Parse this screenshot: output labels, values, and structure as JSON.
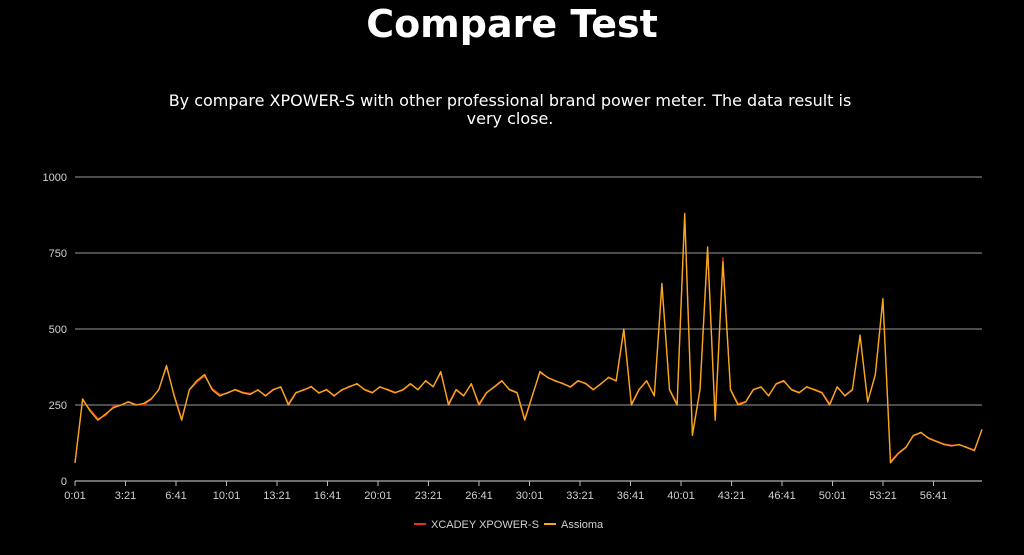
{
  "page": {
    "title": "Compare Test",
    "subtitle": "By compare XPOWER-S with other professional brand power meter. The data result is very close."
  },
  "colors": {
    "background": "#000000",
    "grid": "#9a9a9a",
    "text": "#d0d0d0",
    "series_xpower": "#e8321e",
    "series_assioma": "#f5a81c"
  },
  "chart_data": {
    "type": "line",
    "title": "",
    "xlabel": "",
    "ylabel": "",
    "ylim": [
      0,
      1000
    ],
    "y_ticks": [
      0,
      250,
      500,
      750,
      1000
    ],
    "x_ticks": [
      "0:01",
      "3:21",
      "6:41",
      "10:01",
      "13:21",
      "16:41",
      "20:01",
      "23:21",
      "26:41",
      "30:01",
      "33:21",
      "36:41",
      "40:01",
      "43:21",
      "46:41",
      "50:01",
      "53:21",
      "56:41"
    ],
    "x_range_minutes": [
      0,
      59.5
    ],
    "grid": "horizontal",
    "legend_position": "bottom",
    "series": [
      {
        "name": "XCADEY XPOWER-S",
        "color": "#e8321e"
      },
      {
        "name": "Assioma",
        "color": "#f5a81c"
      }
    ],
    "x": [
      0,
      0.5,
      1,
      1.5,
      2,
      2.5,
      3,
      3.5,
      4,
      4.5,
      5,
      5.5,
      6,
      6.5,
      7,
      7.5,
      8,
      8.5,
      9,
      9.5,
      10,
      10.5,
      11,
      11.5,
      12,
      12.5,
      13,
      13.5,
      14,
      14.5,
      15,
      15.5,
      16,
      16.5,
      17,
      17.5,
      18,
      18.5,
      19,
      19.5,
      20,
      20.5,
      21,
      21.5,
      22,
      22.5,
      23,
      23.5,
      24,
      24.5,
      25,
      25.5,
      26,
      26.5,
      27,
      27.5,
      28,
      28.5,
      29,
      29.5,
      30,
      30.5,
      31,
      31.5,
      32,
      32.5,
      33,
      33.5,
      34,
      34.5,
      35,
      35.5,
      36,
      36.5,
      37,
      37.5,
      38,
      38.5,
      39,
      39.5,
      40,
      40.5,
      41,
      41.5,
      42,
      42.5,
      43,
      43.5,
      44,
      44.5,
      45,
      45.5,
      46,
      46.5,
      47,
      47.5,
      48,
      48.5,
      49,
      49.5,
      50,
      50.5,
      51,
      51.5,
      52,
      52.5,
      53,
      53.5,
      54,
      54.5,
      55,
      55.5,
      56,
      56.5,
      57,
      57.5,
      58,
      58.5,
      59,
      59.5
    ],
    "assioma": [
      60,
      270,
      230,
      200,
      220,
      240,
      250,
      260,
      250,
      255,
      270,
      300,
      380,
      280,
      200,
      300,
      330,
      350,
      300,
      280,
      290,
      300,
      290,
      285,
      300,
      280,
      300,
      310,
      250,
      290,
      300,
      310,
      290,
      300,
      280,
      300,
      310,
      320,
      300,
      290,
      310,
      300,
      290,
      300,
      320,
      300,
      330,
      310,
      360,
      250,
      300,
      280,
      320,
      250,
      290,
      310,
      330,
      300,
      290,
      200,
      280,
      360,
      340,
      330,
      320,
      310,
      330,
      320,
      300,
      320,
      340,
      330,
      500,
      250,
      300,
      330,
      280,
      650,
      300,
      250,
      880,
      150,
      300,
      770,
      200,
      720,
      300,
      250,
      260,
      300,
      310,
      280,
      320,
      330,
      300,
      290,
      310,
      300,
      290,
      250,
      310,
      280,
      300,
      480,
      260,
      350,
      600,
      60,
      90,
      110,
      150,
      160,
      140,
      130,
      120,
      115,
      120,
      110,
      100,
      170
    ],
    "xpower": [
      60,
      265,
      235,
      205,
      215,
      245,
      248,
      262,
      252,
      250,
      268,
      302,
      375,
      285,
      205,
      298,
      325,
      345,
      305,
      285,
      288,
      302,
      292,
      288,
      298,
      282,
      302,
      308,
      255,
      292,
      298,
      312,
      288,
      302,
      282,
      298,
      312,
      318,
      302,
      292,
      308,
      302,
      292,
      298,
      318,
      302,
      328,
      312,
      355,
      255,
      302,
      282,
      318,
      255,
      292,
      308,
      328,
      302,
      292,
      205,
      282,
      355,
      342,
      328,
      322,
      308,
      328,
      322,
      302,
      318,
      342,
      328,
      495,
      255,
      302,
      328,
      282,
      640,
      302,
      255,
      870,
      155,
      302,
      760,
      205,
      735,
      302,
      255,
      262,
      302,
      308,
      282,
      318,
      328,
      302,
      292,
      308,
      302,
      292,
      255,
      308,
      282,
      302,
      475,
      262,
      348,
      595,
      65,
      92,
      112,
      148,
      158,
      142,
      132,
      122,
      118,
      118,
      112,
      102,
      168
    ]
  },
  "legend": {
    "xpower_label": "XCADEY XPOWER-S",
    "assioma_label": "Assioma"
  }
}
